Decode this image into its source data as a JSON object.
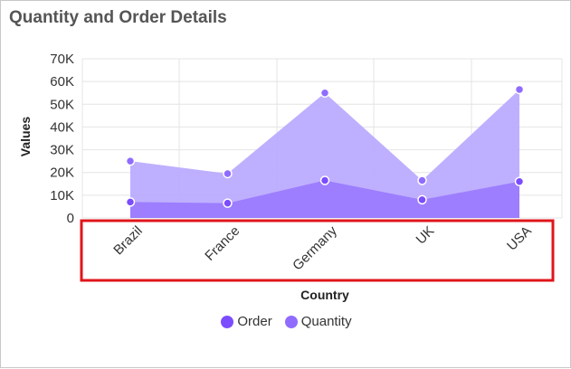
{
  "page": {
    "title": "Quantity and Order Details"
  },
  "colors": {
    "order": "#7c4dff",
    "quantity": "#8f6cff",
    "order_fill": "#9a7bff",
    "quantity_fill": "#bcabff",
    "highlight": "#e0151b",
    "grid": "#e4e4e4"
  },
  "chart_data": {
    "type": "area",
    "title": "Quantity and Order Details",
    "xlabel": "Country",
    "ylabel": "Values",
    "categories": [
      "Brazil",
      "France",
      "Germany",
      "UK",
      "USA"
    ],
    "ylim": [
      0,
      70000
    ],
    "yticks": [
      0,
      10000,
      20000,
      30000,
      40000,
      50000,
      60000,
      70000
    ],
    "ytick_labels": [
      "0",
      "10K",
      "20K",
      "30K",
      "40K",
      "50K",
      "60K",
      "70K"
    ],
    "series": [
      {
        "name": "Order",
        "values": [
          7000,
          6500,
          16500,
          8000,
          16000
        ]
      },
      {
        "name": "Quantity",
        "values": [
          25000,
          19500,
          55000,
          16500,
          56500
        ]
      }
    ],
    "grid": true,
    "legend": "bottom-center",
    "annotation": "red box around x-axis category labels"
  }
}
